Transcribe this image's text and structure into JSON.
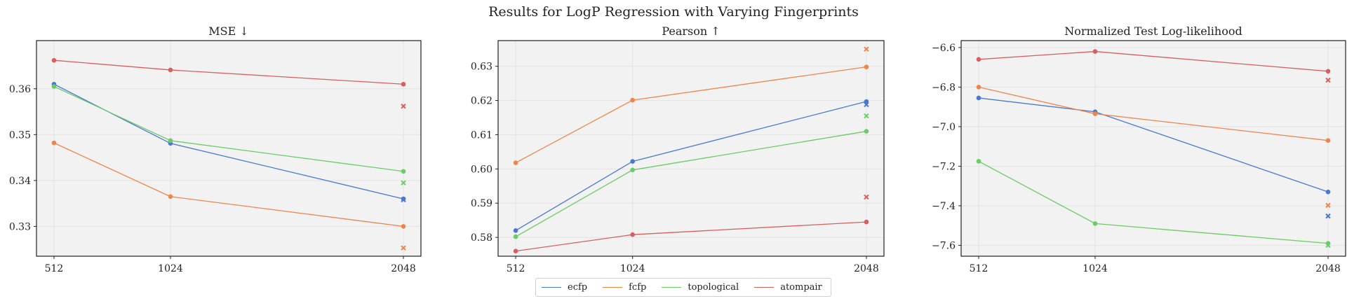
{
  "figure_title": "Results for LogP Regression with Varying Fingerprints",
  "colors": {
    "ecfp": "#4878d0",
    "fcfp": "#ee854a",
    "topological": "#6acc64",
    "atompair": "#d65f5f"
  },
  "legend": [
    {
      "name": "ecfp",
      "color": "#4878d0"
    },
    {
      "name": "fcfp",
      "color": "#ee854a"
    },
    {
      "name": "topological",
      "color": "#6acc64"
    },
    {
      "name": "atompair",
      "color": "#d65f5f"
    }
  ],
  "chart_data": [
    {
      "type": "line",
      "title": "MSE  ↓",
      "x": [
        512,
        1024,
        2048
      ],
      "xticks": [
        "512",
        "1024",
        "2048"
      ],
      "ylim": [
        0.3235,
        0.3705
      ],
      "yticks": [
        0.33,
        0.34,
        0.35,
        0.36
      ],
      "ytick_labels": [
        "0.33",
        "0.34",
        "0.35",
        "0.36"
      ],
      "grid": true,
      "series": [
        {
          "name": "ecfp",
          "values": [
            0.361,
            0.3481,
            0.336
          ],
          "marker_x": 0.3358
        },
        {
          "name": "fcfp",
          "values": [
            0.3482,
            0.3365,
            0.33
          ],
          "marker_x": 0.3253
        },
        {
          "name": "topological",
          "values": [
            0.3605,
            0.3487,
            0.342
          ],
          "marker_x": 0.3395
        },
        {
          "name": "atompair",
          "values": [
            0.3662,
            0.3641,
            0.361
          ],
          "marker_x": 0.3562
        }
      ]
    },
    {
      "type": "line",
      "title": "Pearson  ↑",
      "x": [
        512,
        1024,
        2048
      ],
      "xticks": [
        "512",
        "1024",
        "2048"
      ],
      "ylim": [
        0.5745,
        0.6375
      ],
      "yticks": [
        0.58,
        0.59,
        0.6,
        0.61,
        0.62,
        0.63
      ],
      "ytick_labels": [
        "0.58",
        "0.59",
        "0.60",
        "0.61",
        "0.62",
        "0.63"
      ],
      "grid": true,
      "series": [
        {
          "name": "ecfp",
          "values": [
            0.582,
            0.6022,
            0.6197
          ],
          "marker_x": 0.6188
        },
        {
          "name": "fcfp",
          "values": [
            0.6018,
            0.6201,
            0.6298
          ],
          "marker_x": 0.635
        },
        {
          "name": "topological",
          "values": [
            0.5802,
            0.5997,
            0.611
          ],
          "marker_x": 0.6155
        },
        {
          "name": "atompair",
          "values": [
            0.576,
            0.5808,
            0.5845
          ],
          "marker_x": 0.5918
        }
      ]
    },
    {
      "type": "line",
      "title": "Normalized Test Log-likelihood",
      "x": [
        512,
        1024,
        2048
      ],
      "xticks": [
        "512",
        "1024",
        "2048"
      ],
      "ylim": [
        -7.655,
        -6.565
      ],
      "yticks": [
        -7.6,
        -7.4,
        -7.2,
        -7.0,
        -6.8,
        -6.6
      ],
      "ytick_labels": [
        "−7.6",
        "−7.4",
        "−7.2",
        "−7.0",
        "−6.8",
        "−6.6"
      ],
      "grid": true,
      "series": [
        {
          "name": "ecfp",
          "values": [
            -6.855,
            -6.925,
            -7.33
          ],
          "marker_x": -7.452
        },
        {
          "name": "fcfp",
          "values": [
            -6.8,
            -6.935,
            -7.07
          ],
          "marker_x": -7.398
        },
        {
          "name": "topological",
          "values": [
            -7.175,
            -7.49,
            -7.59
          ],
          "marker_x": -7.6
        },
        {
          "name": "atompair",
          "values": [
            -6.66,
            -6.62,
            -6.72
          ],
          "marker_x": -6.765
        }
      ]
    }
  ]
}
